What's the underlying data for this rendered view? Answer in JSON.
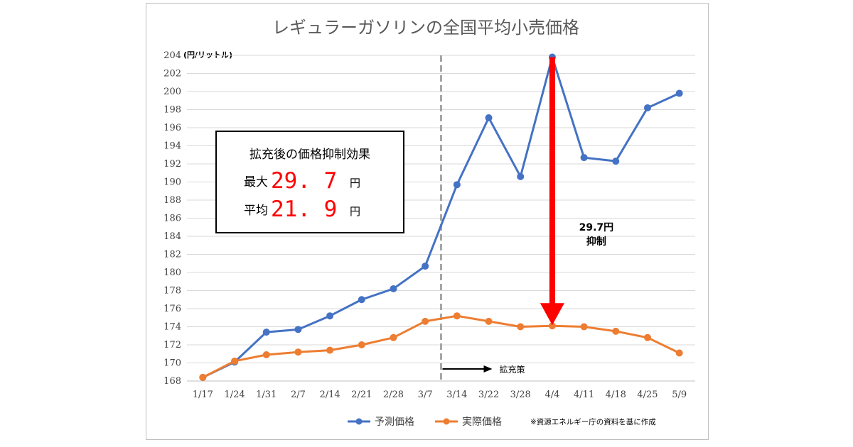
{
  "chart_data": {
    "type": "line",
    "title": "レギュラーガソリンの全国平均小売価格",
    "y_unit_label": "(円/リットル)",
    "categories": [
      "1/17",
      "1/24",
      "1/31",
      "2/7",
      "2/14",
      "2/21",
      "2/28",
      "3/7",
      "3/14",
      "3/22",
      "3/28",
      "4/4",
      "4/11",
      "4/18",
      "4/25",
      "5/9"
    ],
    "ylim": [
      168,
      204
    ],
    "ytick_step": 2,
    "grid": "horizontal",
    "legend_position": "bottom",
    "series": [
      {
        "name": "予測価格",
        "color": "#4472c4",
        "values": [
          168.4,
          170.1,
          173.4,
          173.7,
          175.2,
          177.0,
          178.2,
          180.7,
          189.7,
          197.1,
          190.6,
          203.8,
          192.7,
          192.3,
          198.2,
          199.8
        ]
      },
      {
        "name": "実際価格",
        "color": "#ed7d31",
        "values": [
          168.4,
          170.2,
          170.9,
          171.2,
          171.4,
          172.0,
          172.8,
          174.6,
          175.2,
          174.6,
          174.0,
          174.1,
          174.0,
          173.5,
          172.8,
          171.1
        ]
      }
    ],
    "policy_line": {
      "after_category": "3/7",
      "label": "拡充策"
    },
    "suppression_arrow": {
      "category": "4/4",
      "from": 203.8,
      "to": 174.1,
      "label_line1": "29.7円",
      "label_line2": "抑制",
      "color": "#ff0000"
    },
    "summary_box": {
      "heading": "拡充後の価格抑制効果",
      "rows": [
        {
          "label": "最大",
          "value": "29.7",
          "unit": "円"
        },
        {
          "label": "平均",
          "value": "21.9",
          "unit": "円"
        }
      ]
    },
    "source_note": "※資源エネルギー庁の資料を基に作成"
  }
}
